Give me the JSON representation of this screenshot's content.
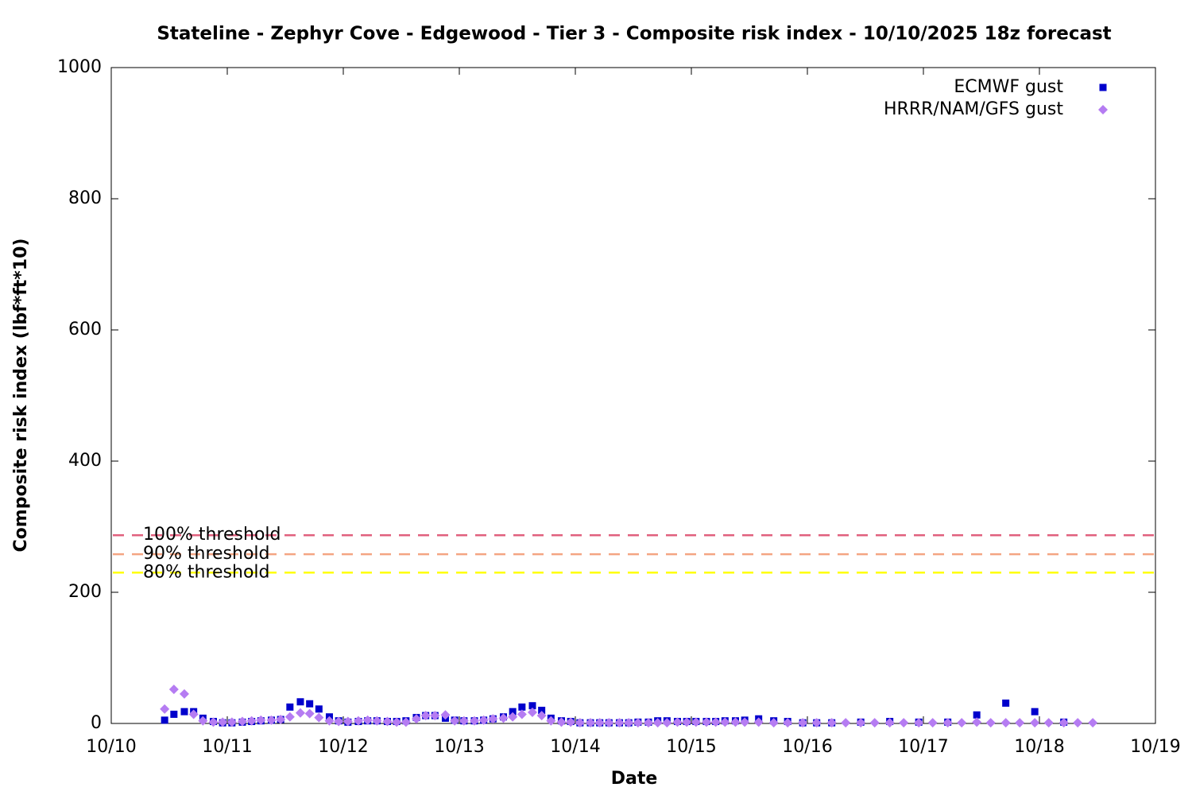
{
  "chart_data": {
    "type": "scatter",
    "title": "Stateline - Zephyr Cove - Edgewood - Tier 3 - Composite risk index - 10/10/2025 18z forecast",
    "x_label": "Date",
    "y_label": "Composite risk index (lbf*ft*10)",
    "xlim": [
      0,
      9
    ],
    "xticks": [
      {
        "value": 0,
        "label": "10/10"
      },
      {
        "value": 1,
        "label": "10/11"
      },
      {
        "value": 2,
        "label": "10/12"
      },
      {
        "value": 3,
        "label": "10/13"
      },
      {
        "value": 4,
        "label": "10/14"
      },
      {
        "value": 5,
        "label": "10/15"
      },
      {
        "value": 6,
        "label": "10/16"
      },
      {
        "value": 7,
        "label": "10/17"
      },
      {
        "value": 8,
        "label": "10/18"
      },
      {
        "value": 9,
        "label": "10/19"
      }
    ],
    "ylim": [
      0,
      1000
    ],
    "yticks": [
      0,
      200,
      400,
      600,
      800,
      1000
    ],
    "legend": "top right",
    "thresholds": [
      {
        "label": "100% threshold",
        "value": 287,
        "color": "#e0607e"
      },
      {
        "label": "90% threshold",
        "value": 258,
        "color": "#f4a582"
      },
      {
        "label": "80% threshold",
        "value": 230,
        "color": "#ffff00"
      }
    ],
    "series": [
      {
        "name": "ECMWF gust",
        "color": "#0000cc",
        "marker": "square",
        "x": [
          0.46,
          0.54,
          0.63,
          0.71,
          0.79,
          0.88,
          0.96,
          1.04,
          1.13,
          1.21,
          1.29,
          1.38,
          1.46,
          1.54,
          1.63,
          1.71,
          1.79,
          1.88,
          1.96,
          2.04,
          2.13,
          2.21,
          2.29,
          2.38,
          2.46,
          2.54,
          2.63,
          2.71,
          2.79,
          2.88,
          2.96,
          3.04,
          3.13,
          3.21,
          3.29,
          3.38,
          3.46,
          3.54,
          3.63,
          3.71,
          3.79,
          3.88,
          3.96,
          4.04,
          4.13,
          4.21,
          4.29,
          4.38,
          4.46,
          4.54,
          4.63,
          4.71,
          4.79,
          4.88,
          4.96,
          5.04,
          5.13,
          5.21,
          5.29,
          5.38,
          5.46,
          5.58,
          5.71,
          5.83,
          5.96,
          6.08,
          6.21,
          6.46,
          6.71,
          6.96,
          7.21,
          7.46,
          7.71,
          7.96,
          8.21
        ],
        "values": [
          5,
          14,
          18,
          18,
          8,
          3,
          1,
          1,
          2,
          3,
          4,
          5,
          6,
          25,
          33,
          30,
          22,
          10,
          4,
          2,
          3,
          4,
          4,
          3,
          3,
          4,
          9,
          12,
          12,
          8,
          5,
          4,
          4,
          5,
          7,
          10,
          18,
          25,
          27,
          20,
          8,
          4,
          3,
          1,
          1,
          1,
          1,
          1,
          1,
          2,
          2,
          4,
          4,
          3,
          3,
          3,
          3,
          3,
          4,
          4,
          5,
          7,
          4,
          3,
          1,
          1,
          1,
          2,
          3,
          2,
          2,
          13,
          31,
          18,
          2
        ]
      },
      {
        "name": "HRRR/NAM/GFS gust",
        "color": "#b57cf2",
        "marker": "diamond",
        "x": [
          0.46,
          0.54,
          0.63,
          0.71,
          0.79,
          0.88,
          0.96,
          1.04,
          1.13,
          1.21,
          1.29,
          1.38,
          1.46,
          1.54,
          1.63,
          1.71,
          1.79,
          1.88,
          1.96,
          2.04,
          2.13,
          2.21,
          2.29,
          2.38,
          2.46,
          2.54,
          2.63,
          2.71,
          2.79,
          2.88,
          2.96,
          3.04,
          3.13,
          3.21,
          3.29,
          3.38,
          3.46,
          3.54,
          3.63,
          3.71,
          3.79,
          3.88,
          3.96,
          4.04,
          4.13,
          4.21,
          4.29,
          4.38,
          4.46,
          4.54,
          4.63,
          4.71,
          4.79,
          4.88,
          4.96,
          5.04,
          5.13,
          5.21,
          5.29,
          5.38,
          5.46,
          5.58,
          5.71,
          5.83,
          5.96,
          6.08,
          6.21,
          6.33,
          6.46,
          6.58,
          6.71,
          6.83,
          6.96,
          7.08,
          7.21,
          7.33,
          7.46,
          7.58,
          7.71,
          7.83,
          7.96,
          8.08,
          8.21,
          8.33,
          8.46
        ],
        "values": [
          22,
          52,
          45,
          14,
          4,
          2,
          2,
          2,
          3,
          4,
          5,
          5,
          6,
          10,
          16,
          15,
          9,
          4,
          3,
          3,
          4,
          5,
          4,
          3,
          2,
          2,
          7,
          12,
          12,
          13,
          4,
          4,
          4,
          5,
          7,
          8,
          10,
          14,
          17,
          12,
          4,
          2,
          2,
          1,
          1,
          1,
          1,
          1,
          1,
          1,
          1,
          1,
          1,
          2,
          2,
          2,
          2,
          2,
          2,
          2,
          2,
          2,
          1,
          1,
          1,
          1,
          1,
          1,
          1,
          1,
          1,
          1,
          1,
          1,
          1,
          1,
          2,
          1,
          1,
          1,
          1,
          1,
          1,
          1,
          1
        ]
      }
    ]
  }
}
